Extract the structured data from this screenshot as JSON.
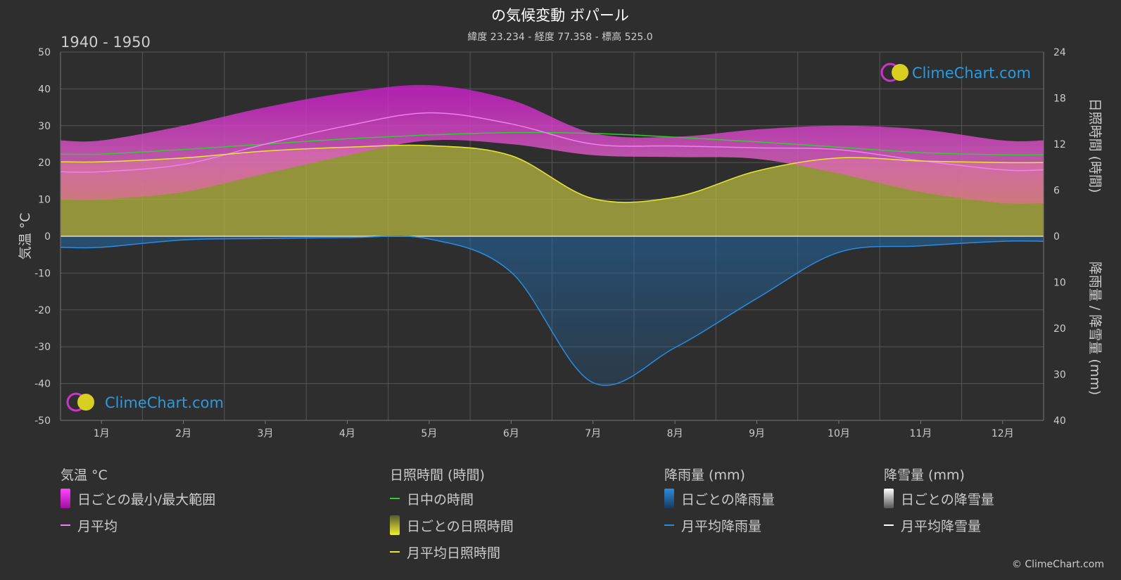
{
  "title": "の気候変動 ボパール",
  "subtitle": "緯度 23.234 - 経度 77.358 - 標高 525.0",
  "period": "1940 - 1950",
  "brand": "ClimeChart.com",
  "copyright": "© ClimeChart.com",
  "colors": {
    "background": "#2e2e2e",
    "temp_range": "#d81ad8",
    "temp_mean": "#f080f0",
    "daylight": "#33cc33",
    "sunshine": "#b5b540",
    "sunshine_mean": "#e8e832",
    "rain": "#1f6fb5",
    "rain_mean": "#2a8ce0",
    "snow_mean": "#ffffff"
  },
  "legend": {
    "temperature": {
      "title": "気温 °C",
      "range": "日ごとの最小/最大範囲",
      "mean": "月平均"
    },
    "sunshine": {
      "title": "日照時間 (時間)",
      "daylight": "日中の時間",
      "daily": "日ごとの日照時間",
      "mean": "月平均日照時間"
    },
    "rain": {
      "title": "降雨量 (mm)",
      "daily": "日ごとの降雨量",
      "mean": "月平均降雨量"
    },
    "snow": {
      "title": "降雪量 (mm)",
      "daily": "日ごとの降雪量",
      "mean": "月平均降雪量"
    }
  },
  "chart_data": {
    "type": "line",
    "x": [
      "1月",
      "2月",
      "3月",
      "4月",
      "5月",
      "6月",
      "7月",
      "8月",
      "9月",
      "10月",
      "11月",
      "12月"
    ],
    "axes": {
      "left": {
        "label": "気温 °C",
        "range": [
          -50,
          50
        ],
        "ticks": [
          50,
          40,
          30,
          20,
          10,
          0,
          -10,
          -20,
          -30,
          -40,
          -50
        ]
      },
      "right_top": {
        "label": "日照時間 (時間)",
        "range": [
          0,
          24
        ],
        "ticks": [
          24,
          18,
          12,
          6,
          0
        ]
      },
      "right_bottom": {
        "label": "降雨量 / 降雪量 (mm)",
        "range": [
          0,
          40
        ],
        "ticks": [
          10,
          20,
          30,
          40
        ]
      }
    },
    "grid": true,
    "series": [
      {
        "name": "月平均",
        "unit": "°C",
        "values": [
          17.5,
          19.5,
          25,
          30,
          33.5,
          30.5,
          25,
          24.5,
          24,
          23.5,
          20.5,
          18
        ]
      },
      {
        "name": "日ごとの最小/最大範囲 (最小)",
        "unit": "°C",
        "values": [
          10,
          12,
          17,
          22,
          26,
          25,
          22,
          21.5,
          21,
          17,
          12,
          9
        ]
      },
      {
        "name": "日ごとの最小/最大範囲 (最大)",
        "unit": "°C",
        "values": [
          26,
          30,
          35,
          39,
          41,
          37,
          28,
          27,
          29,
          30,
          29,
          26
        ]
      },
      {
        "name": "日中の時間",
        "unit": "時間",
        "values": [
          10.7,
          11.3,
          12,
          12.7,
          13.2,
          13.5,
          13.4,
          12.9,
          12.3,
          11.6,
          10.9,
          10.6
        ]
      },
      {
        "name": "月平均日照時間",
        "unit": "時間",
        "values": [
          9.7,
          10.2,
          11.1,
          11.6,
          11.8,
          10.5,
          4.9,
          5.1,
          8.5,
          10.2,
          9.8,
          9.6
        ]
      },
      {
        "name": "月平均降雨量",
        "unit": "mm",
        "values": [
          2.4,
          0.8,
          0.5,
          0.3,
          0.6,
          7.8,
          31.8,
          24.2,
          13.5,
          3.5,
          2.1,
          1.1
        ]
      },
      {
        "name": "月平均降雪量",
        "unit": "mm",
        "values": [
          0,
          0,
          0,
          0,
          0,
          0,
          0,
          0,
          0,
          0,
          0,
          0
        ]
      }
    ]
  }
}
